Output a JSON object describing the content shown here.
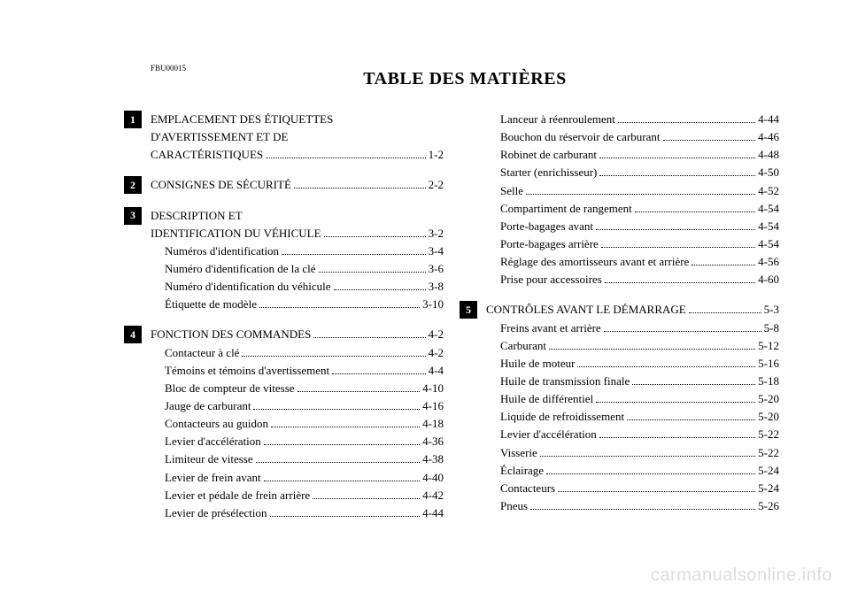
{
  "doc_code": "FBU00015",
  "title": "TABLE DES MATIÈRES",
  "watermark": "carmanualsonline.info",
  "left_sections": [
    {
      "badge": "1",
      "heading": [
        {
          "text": "EMPLACEMENT DES ÉTIQUETTES",
          "page": ""
        },
        {
          "text": "D'AVERTISSEMENT ET DE",
          "page": ""
        },
        {
          "text": "CARACTÉRISTIQUES",
          "page": "1-2"
        }
      ],
      "items": []
    },
    {
      "badge": "2",
      "heading": [
        {
          "text": "CONSIGNES DE SÉCURITÉ",
          "page": "2-2"
        }
      ],
      "items": []
    },
    {
      "badge": "3",
      "heading": [
        {
          "text": "DESCRIPTION ET",
          "page": ""
        },
        {
          "text": "IDENTIFICATION DU VÉHICULE",
          "page": "3-2"
        }
      ],
      "items": [
        {
          "text": "Numéros d'identification",
          "page": "3-4"
        },
        {
          "text": "Numéro d'identification de la clé",
          "page": "3-6"
        },
        {
          "text": "Numéro d'identification du véhicule",
          "page": "3-8"
        },
        {
          "text": "Étiquette de modèle",
          "page": "3-10"
        }
      ]
    },
    {
      "badge": "4",
      "heading": [
        {
          "text": "FONCTION DES COMMANDES",
          "page": "4-2"
        }
      ],
      "items": [
        {
          "text": "Contacteur à clé",
          "page": "4-2"
        },
        {
          "text": "Témoins et témoins d'avertissement",
          "page": "4-4"
        },
        {
          "text": "Bloc de compteur de vitesse",
          "page": "4-10"
        },
        {
          "text": "Jauge de carburant",
          "page": "4-16"
        },
        {
          "text": "Contacteurs au guidon",
          "page": "4-18"
        },
        {
          "text": "Levier d'accélération",
          "page": "4-36"
        },
        {
          "text": "Limiteur de vitesse",
          "page": "4-38"
        },
        {
          "text": "Levier de frein avant",
          "page": "4-40"
        },
        {
          "text": "Levier et pédale de frein arrière",
          "page": "4-42"
        },
        {
          "text": "Levier de présélection",
          "page": "4-44"
        }
      ]
    }
  ],
  "right_sections": [
    {
      "badge": "",
      "heading": [],
      "items": [
        {
          "text": "Lanceur à réenroulement",
          "page": "4-44"
        },
        {
          "text": "Bouchon du réservoir de carburant",
          "page": "4-46"
        },
        {
          "text": "Robinet de carburant",
          "page": "4-48"
        },
        {
          "text": "Starter (enrichisseur)",
          "page": "4-50"
        },
        {
          "text": "Selle",
          "page": "4-52"
        },
        {
          "text": "Compartiment de rangement",
          "page": "4-54"
        },
        {
          "text": "Porte-bagages avant",
          "page": "4-54"
        },
        {
          "text": "Porte-bagages arrière",
          "page": "4-54"
        },
        {
          "text": "Réglage des amortisseurs avant et arrière",
          "page": "4-56"
        },
        {
          "text": "Prise pour accessoires",
          "page": "4-60"
        }
      ]
    },
    {
      "badge": "5",
      "heading": [
        {
          "text": "CONTRÔLES AVANT LE DÉMARRAGE",
          "page": "5-3"
        }
      ],
      "items": [
        {
          "text": "Freins avant et arrière",
          "page": "5-8"
        },
        {
          "text": "Carburant",
          "page": "5-12"
        },
        {
          "text": "Huile de moteur",
          "page": "5-16"
        },
        {
          "text": "Huile de transmission finale",
          "page": "5-18"
        },
        {
          "text": "Huile de différentiel",
          "page": "5-20"
        },
        {
          "text": "Liquide de refroidissement",
          "page": "5-20"
        },
        {
          "text": "Levier d'accélération",
          "page": "5-22"
        },
        {
          "text": "Visserie",
          "page": "5-22"
        },
        {
          "text": "Éclairage",
          "page": "5-24"
        },
        {
          "text": "Contacteurs",
          "page": "5-24"
        },
        {
          "text": "Pneus",
          "page": "5-26"
        }
      ]
    }
  ]
}
